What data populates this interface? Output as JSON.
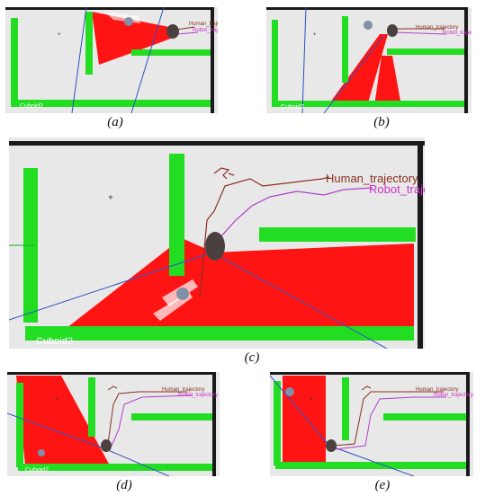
{
  "figure": {
    "captions": {
      "a": "(a)",
      "b": "(b)",
      "c": "(c)",
      "d": "(d)",
      "e": "(e)"
    },
    "labels": {
      "human_trajectory": "Human_trajectory",
      "robot_trajectory": "Robot_trajectory",
      "cuboid": "Cuboid2"
    },
    "colors": {
      "background": "#e8e8e8",
      "wall": "#1a1a1a",
      "obstacle": "#22dd22",
      "sensor_beam": "#ff1414",
      "human_trajectory_line": "#8a3020",
      "robot_trajectory_line": "#b040c8",
      "robot_label_color": "#cc33cc",
      "ray_line": "#3050c0",
      "human": "#4a4040",
      "robot": "#8090a8"
    }
  }
}
